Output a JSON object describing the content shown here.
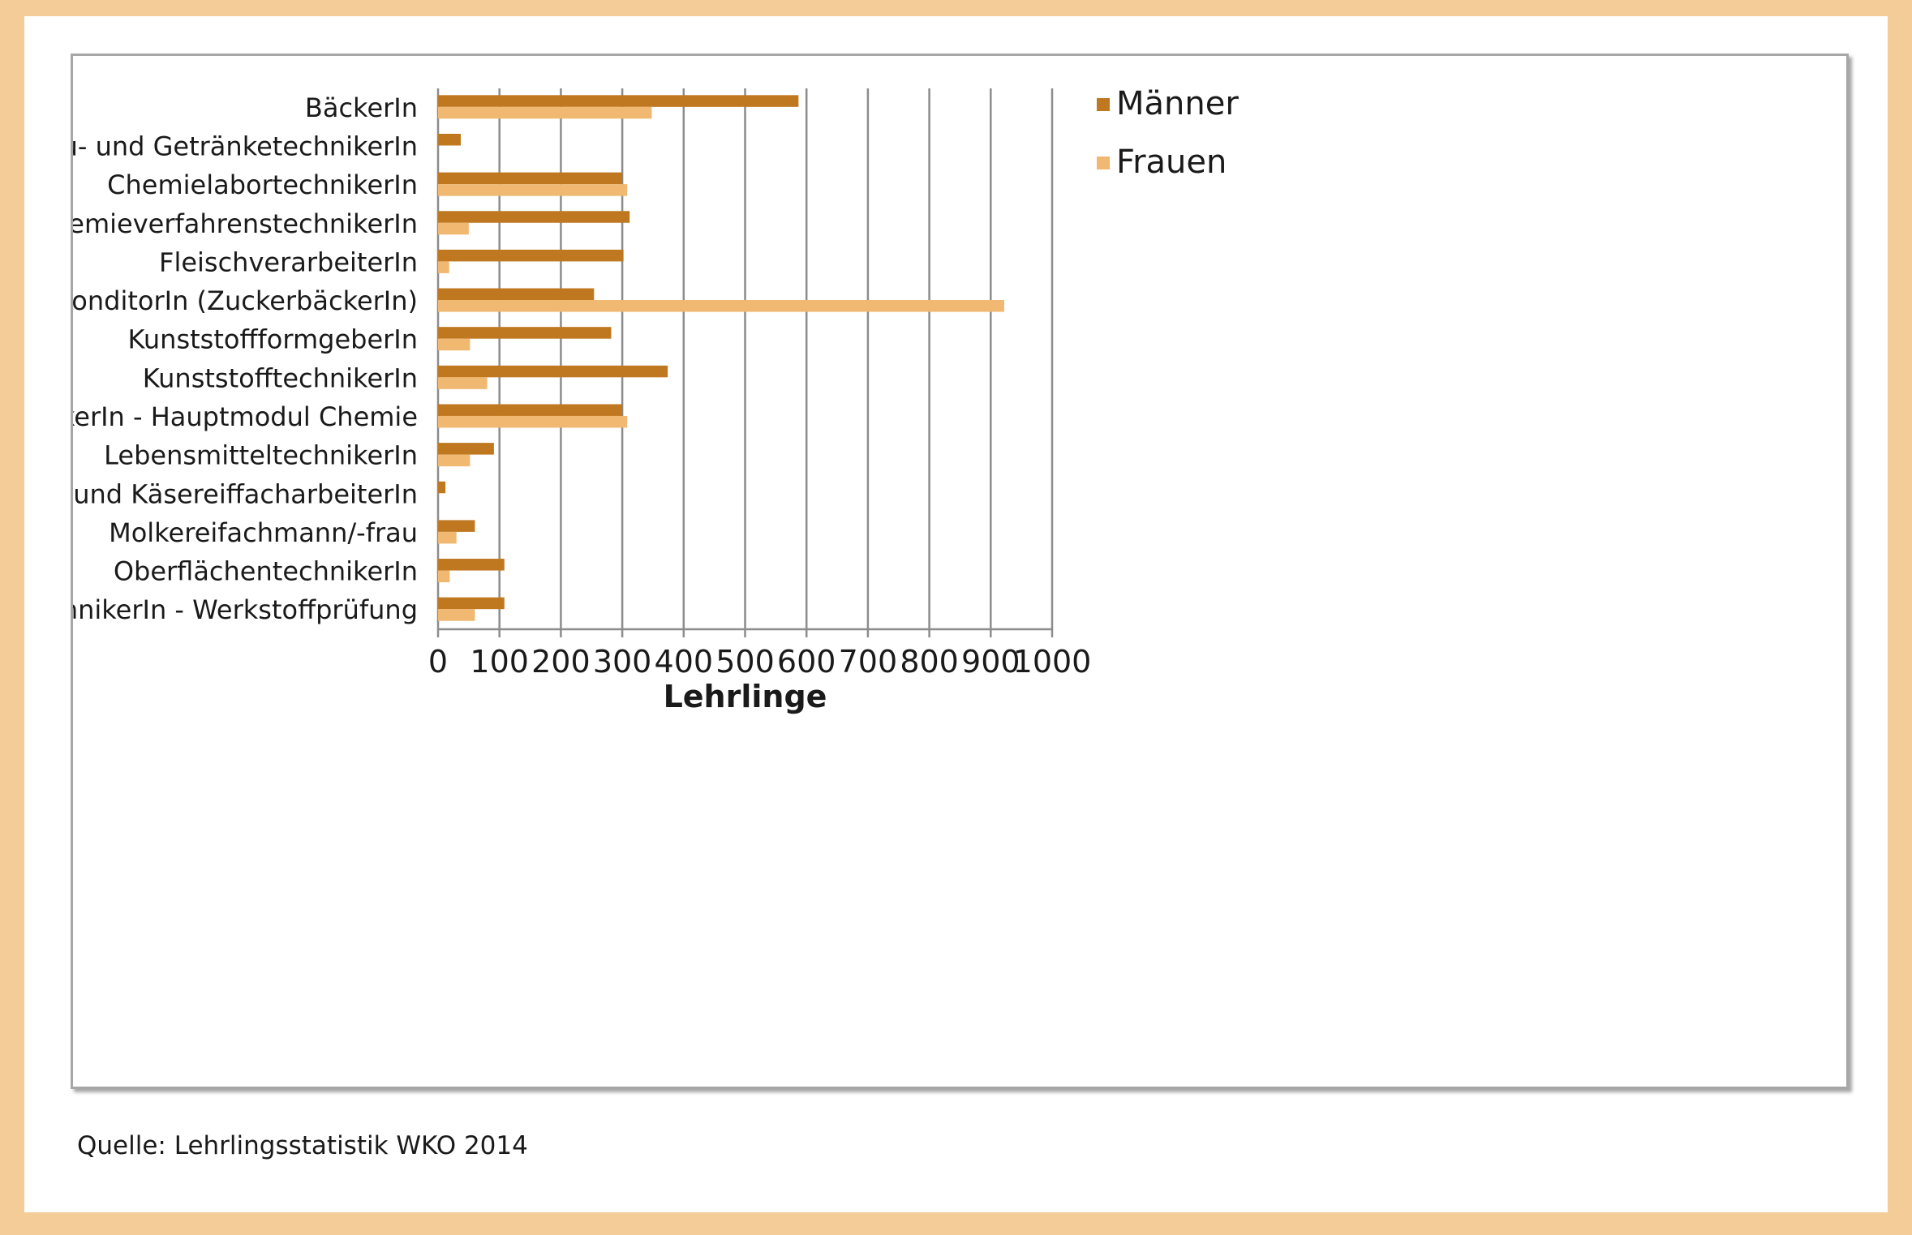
{
  "chart_data": {
    "type": "bar",
    "orientation": "horizontal",
    "categories": [
      "BäckerIn",
      "Brau- und GetränketechnikerIn",
      "ChemielabortechnikerIn",
      "ChemieverfahrenstechnikerIn",
      "FleischverarbeiterIn",
      "KonditorIn (ZuckerbäckerIn)",
      "KunststoffformgeberIn",
      "KunststofftechnikerIn",
      "LabortechnikerIn - Hauptmodul Chemie",
      "LebensmitteltechnikerIn",
      "Molkerei- und KäsereiffacharbeiterIn",
      "Molkereifachmann/-frau",
      "OberflächentechnikerIn",
      "WerkstofftechnikerIn - Werkstoffprüfung"
    ],
    "series": [
      {
        "name": "Männer",
        "color": "#c07820",
        "values": [
          587,
          37,
          300,
          312,
          302,
          254,
          282,
          374,
          300,
          91,
          12,
          60,
          108,
          108
        ]
      },
      {
        "name": "Frauen",
        "color": "#f0b870",
        "values": [
          348,
          0,
          308,
          50,
          18,
          922,
          52,
          80,
          308,
          52,
          0,
          30,
          19,
          60
        ]
      }
    ],
    "xlabel": "Lehrlinge",
    "xlim": [
      0,
      1000
    ],
    "xticks": [
      "0",
      "100",
      "200",
      "300",
      "400",
      "500",
      "600",
      "700",
      "800",
      "900",
      "1000"
    ],
    "grid": "vertical",
    "legend_position": "right"
  },
  "source_note": "Quelle: Lehrlingsstatistik WKO 2014"
}
